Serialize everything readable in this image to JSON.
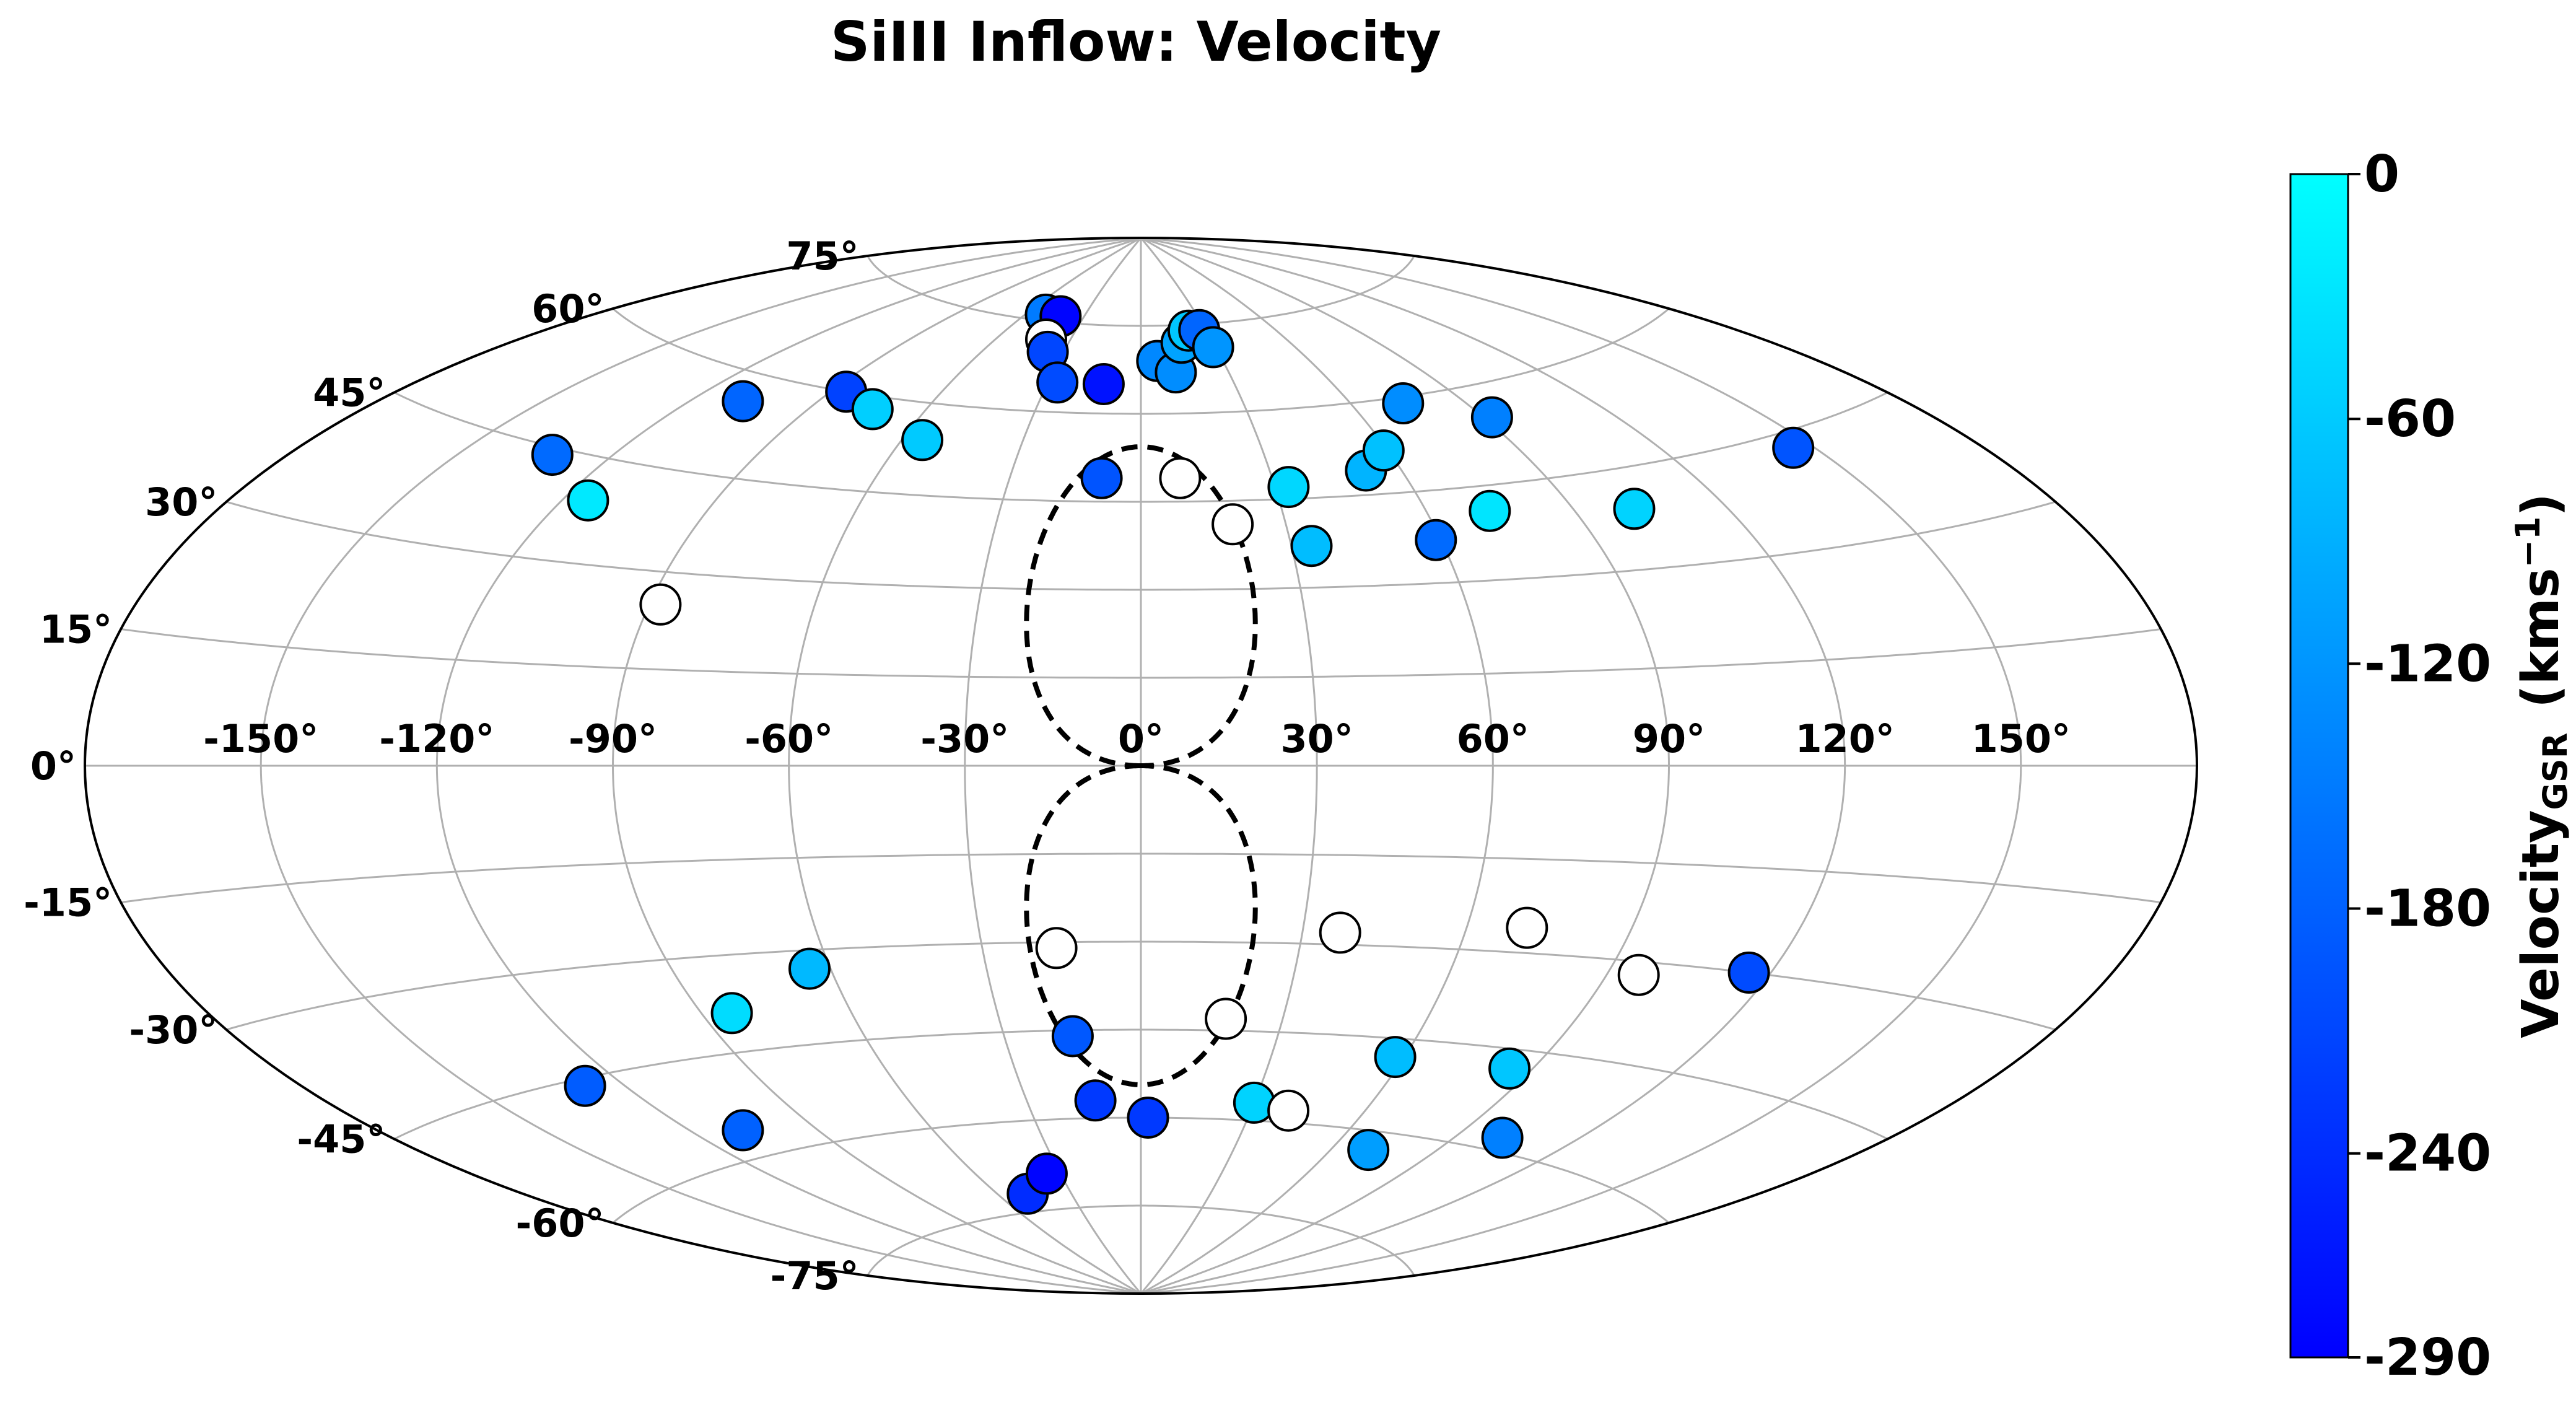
{
  "chart_data": {
    "type": "scatter",
    "projection": "aitoff",
    "title": "SiIII Inflow: Velocity",
    "lon_ticks": [
      "-150°",
      "-120°",
      "-90°",
      "-60°",
      "-30°",
      "0°",
      "30°",
      "60°",
      "90°",
      "120°",
      "150°"
    ],
    "lon_tick_values": [
      -150,
      -120,
      -90,
      -60,
      -30,
      0,
      30,
      60,
      90,
      120,
      150
    ],
    "lat_ticks": [
      "-75°",
      "-60°",
      "-45°",
      "-30°",
      "-15°",
      "0°",
      "15°",
      "30°",
      "45°",
      "60°",
      "75°"
    ],
    "lat_tick_values": [
      -75,
      -60,
      -45,
      -30,
      -15,
      0,
      15,
      30,
      45,
      60,
      75
    ],
    "grid": true,
    "colorbar": {
      "label": "Velocity",
      "label_subscript": "GSR",
      "units": "(kms",
      "units_sup": "−1",
      "units_close": ")",
      "range": [
        -290,
        0
      ],
      "ticks": [
        "0",
        "-60",
        "-120",
        "-180",
        "-240",
        "-290"
      ],
      "tick_values": [
        0,
        -60,
        -120,
        -180,
        -240,
        -290
      ],
      "colors": [
        "#0000ff",
        "#00ffff"
      ]
    },
    "points": [
      {
        "lon": -132,
        "lat": 44,
        "v": -170
      },
      {
        "lon": -115,
        "lat": 39,
        "v": -25
      },
      {
        "lon": -108,
        "lat": 56,
        "v": -175
      },
      {
        "lon": -88,
        "lat": 25,
        "v": null
      },
      {
        "lon": -86,
        "lat": 60,
        "v": -215
      },
      {
        "lon": -74,
        "lat": 58,
        "v": -55
      },
      {
        "lon": -55,
        "lat": 54,
        "v": -60
      },
      {
        "lon": -50,
        "lat": 76,
        "v": -150
      },
      {
        "lon": -42,
        "lat": 76,
        "v": -285
      },
      {
        "lon": -40,
        "lat": 72,
        "v": null
      },
      {
        "lon": -36,
        "lat": 70,
        "v": -210
      },
      {
        "lon": -27,
        "lat": 65,
        "v": -205
      },
      {
        "lon": -12,
        "lat": 65,
        "v": -270
      },
      {
        "lon": -9,
        "lat": 49,
        "v": -195
      },
      {
        "lon": 9,
        "lat": 49,
        "v": null
      },
      {
        "lon": 6,
        "lat": 69,
        "v": -135
      },
      {
        "lon": 12,
        "lat": 67,
        "v": -130
      },
      {
        "lon": 17,
        "lat": 72,
        "v": -105
      },
      {
        "lon": 22,
        "lat": 74,
        "v": -65
      },
      {
        "lon": 27,
        "lat": 74,
        "v": -175
      },
      {
        "lon": 29,
        "lat": 71,
        "v": -120
      },
      {
        "lon": 19,
        "lat": 41,
        "v": null
      },
      {
        "lon": 33,
        "lat": 47,
        "v": -45
      },
      {
        "lon": 34,
        "lat": 37,
        "v": -75
      },
      {
        "lon": 52,
        "lat": 49,
        "v": -85
      },
      {
        "lon": 59,
        "lat": 52,
        "v": -70
      },
      {
        "lon": 59,
        "lat": 37,
        "v": -170
      },
      {
        "lon": 73,
        "lat": 41,
        "v": -30
      },
      {
        "lon": 74,
        "lat": 59,
        "v": -130
      },
      {
        "lon": 92,
        "lat": 55,
        "v": -145
      },
      {
        "lon": 102,
        "lat": 39,
        "v": -50
      },
      {
        "lon": 146,
        "lat": 43,
        "v": -195
      },
      {
        "lon": -128,
        "lat": -46,
        "v": -185
      },
      {
        "lon": -108,
        "lat": -56,
        "v": -180
      },
      {
        "lon": -84,
        "lat": -39,
        "v": -40
      },
      {
        "lon": -64,
        "lat": -33,
        "v": -80
      },
      {
        "lon": -48,
        "lat": -72,
        "v": -240
      },
      {
        "lon": -35,
        "lat": -69,
        "v": -285
      },
      {
        "lon": -16,
        "lat": -31,
        "v": null
      },
      {
        "lon": -15,
        "lat": -46,
        "v": -190
      },
      {
        "lon": -12,
        "lat": -57,
        "v": -225
      },
      {
        "lon": 2,
        "lat": -60,
        "v": -225
      },
      {
        "lon": 18,
        "lat": -43,
        "v": null
      },
      {
        "lon": 30,
        "lat": -57,
        "v": -50
      },
      {
        "lon": 37,
        "lat": -28,
        "v": null
      },
      {
        "lon": 40,
        "lat": -58,
        "v": null
      },
      {
        "lon": 58,
        "lat": -48,
        "v": -75
      },
      {
        "lon": 71,
        "lat": -26,
        "v": null
      },
      {
        "lon": 85,
        "lat": -48,
        "v": -65
      },
      {
        "lon": 96,
        "lat": -32,
        "v": null
      },
      {
        "lon": 116,
        "lat": -30,
        "v": -205
      },
      {
        "lon": 102,
        "lat": -58,
        "v": -145
      },
      {
        "lon": 71,
        "lat": -63,
        "v": -110
      }
    ]
  }
}
